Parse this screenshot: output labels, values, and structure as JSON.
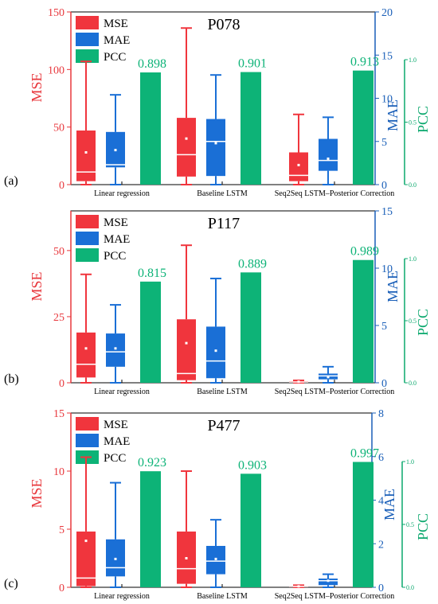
{
  "colors": {
    "mse": "#f0353d",
    "mae": "#1a6fd6",
    "pcc": "#0db377",
    "mse_axis": "#e8383d",
    "mae_axis": "#1a5fb8",
    "pcc_axis": "#0aa86d",
    "frame": "#000000"
  },
  "legend_labels": [
    "MSE",
    "MAE",
    "PCC"
  ],
  "chart_data": [
    {
      "type": "box+bar",
      "panel_label": "(a)",
      "title": "P078",
      "categories": [
        "Linear regression",
        "Baseline LSTM",
        "Seq2Seq LSTM–Posterior Correction"
      ],
      "axes": {
        "mse": {
          "label": "MSE",
          "min": 0,
          "max": 150,
          "ticks": [
            "0",
            "50",
            "100",
            "150"
          ],
          "tick_values": [
            0,
            50,
            100,
            150
          ]
        },
        "mae": {
          "label": "MAE",
          "min": 0,
          "max": 20,
          "ticks": [
            "0",
            "5",
            "10",
            "15",
            "20"
          ],
          "tick_values": [
            0,
            5,
            10,
            15,
            20
          ]
        },
        "pcc": {
          "label": "PCC",
          "min": 0,
          "max": 1.0,
          "ticks": [
            "0.0",
            "0.5",
            "1.0"
          ],
          "tick_values": [
            0,
            0.5,
            1.0
          ]
        }
      },
      "mse_boxes": [
        {
          "min": 0,
          "q1": 3,
          "median": 11,
          "q3": 47,
          "max": 107,
          "mean": 28
        },
        {
          "min": 0,
          "q1": 7,
          "median": 26,
          "q3": 58,
          "max": 136,
          "mean": 40
        },
        {
          "min": 0,
          "q1": 3,
          "median": 8,
          "q3": 28,
          "max": 61,
          "mean": 17
        }
      ],
      "mae_boxes": [
        {
          "min": 0,
          "q1": 2,
          "median": 2.3,
          "q3": 6.1,
          "max": 10.4,
          "mean": 4
        },
        {
          "min": 0,
          "q1": 1,
          "median": 5,
          "q3": 7.6,
          "max": 12.7,
          "mean": 4.8
        },
        {
          "min": 0,
          "q1": 1.6,
          "median": 2.8,
          "q3": 5.3,
          "max": 7.8,
          "mean": 3
        }
      ],
      "pcc_values": [
        0.898,
        0.901,
        0.913
      ],
      "pcc_labels": [
        "0.898",
        "0.901",
        "0.913"
      ]
    },
    {
      "type": "box+bar",
      "panel_label": "(b)",
      "title": "P117",
      "categories": [
        "Linear regression",
        "Baseline LSTM",
        "Seq2Seq LSTM–Posterior Correction"
      ],
      "axes": {
        "mse": {
          "label": "MSE",
          "min": 0,
          "max": 65,
          "ticks": [
            "0",
            "25",
            "50"
          ],
          "tick_values": [
            0,
            25,
            50
          ]
        },
        "mae": {
          "label": "MAE",
          "min": 0,
          "max": 15,
          "ticks": [
            "0",
            "5",
            "10",
            "15"
          ],
          "tick_values": [
            0,
            5,
            10,
            15
          ]
        },
        "pcc": {
          "label": "PCC",
          "min": 0,
          "max": 1.0,
          "ticks": [
            "0.0",
            "0.5",
            "1.0"
          ],
          "tick_values": [
            0,
            0.5,
            1.0
          ]
        }
      },
      "mse_boxes": [
        {
          "min": 0,
          "q1": 2,
          "median": 7,
          "q3": 19,
          "max": 41,
          "mean": 13
        },
        {
          "min": 0,
          "q1": 1,
          "median": 3.5,
          "q3": 24,
          "max": 52,
          "mean": 15
        },
        {
          "min": 0,
          "q1": 0.1,
          "median": 0.3,
          "q3": 0.6,
          "max": 0.9,
          "mean": 0.4
        }
      ],
      "mae_boxes": [
        {
          "min": 0,
          "q1": 1.4,
          "median": 2.7,
          "q3": 4.3,
          "max": 6.8,
          "mean": 3
        },
        {
          "min": 0,
          "q1": 0.4,
          "median": 1.9,
          "q3": 4.9,
          "max": 9.1,
          "mean": 2.8
        },
        {
          "min": 0,
          "q1": 0.3,
          "median": 0.6,
          "q3": 0.8,
          "max": 1.4,
          "mean": 0.5
        }
      ],
      "pcc_values": [
        0.815,
        0.889,
        0.989
      ],
      "pcc_labels": [
        "0.815",
        "0.889",
        "0.989"
      ]
    },
    {
      "type": "box+bar",
      "panel_label": "(c)",
      "title": "P477",
      "categories": [
        "Linear regression",
        "Baseline LSTM",
        "Seq2Seq LSTM–Posterior Correction"
      ],
      "axes": {
        "mse": {
          "label": "MSE",
          "min": 0,
          "max": 15,
          "ticks": [
            "0",
            "5",
            "10",
            "15"
          ],
          "tick_values": [
            0,
            5,
            10,
            15
          ]
        },
        "mae": {
          "label": "MAE",
          "min": 0,
          "max": 8,
          "ticks": [
            "0",
            "2",
            "4",
            "6",
            "8"
          ],
          "tick_values": [
            0,
            2,
            4,
            6,
            8
          ]
        },
        "pcc": {
          "label": "PCC",
          "min": 0,
          "max": 1.0,
          "ticks": [
            "0.0",
            "0.5",
            "1.0"
          ],
          "tick_values": [
            0,
            0.5,
            1.0
          ]
        }
      },
      "mse_boxes": [
        {
          "min": 0,
          "q1": 0.1,
          "median": 0.8,
          "q3": 4.8,
          "max": 11.2,
          "mean": 4
        },
        {
          "min": 0,
          "q1": 0.3,
          "median": 1.6,
          "q3": 4.8,
          "max": 10,
          "mean": 2.5
        },
        {
          "min": 0,
          "q1": 0.02,
          "median": 0.08,
          "q3": 0.12,
          "max": 0.18,
          "mean": 0.08
        }
      ],
      "mae_boxes": [
        {
          "min": 0,
          "q1": 0.5,
          "median": 0.9,
          "q3": 2.2,
          "max": 4.8,
          "mean": 1.3
        },
        {
          "min": 0,
          "q1": 0.6,
          "median": 1.2,
          "q3": 1.9,
          "max": 3.1,
          "mean": 1.3
        },
        {
          "min": 0,
          "q1": 0.1,
          "median": 0.3,
          "q3": 0.4,
          "max": 0.6,
          "mean": 0.3
        }
      ],
      "pcc_values": [
        0.923,
        0.903,
        0.997
      ],
      "pcc_labels": [
        "0.923",
        "0.903",
        "0.997"
      ]
    }
  ]
}
